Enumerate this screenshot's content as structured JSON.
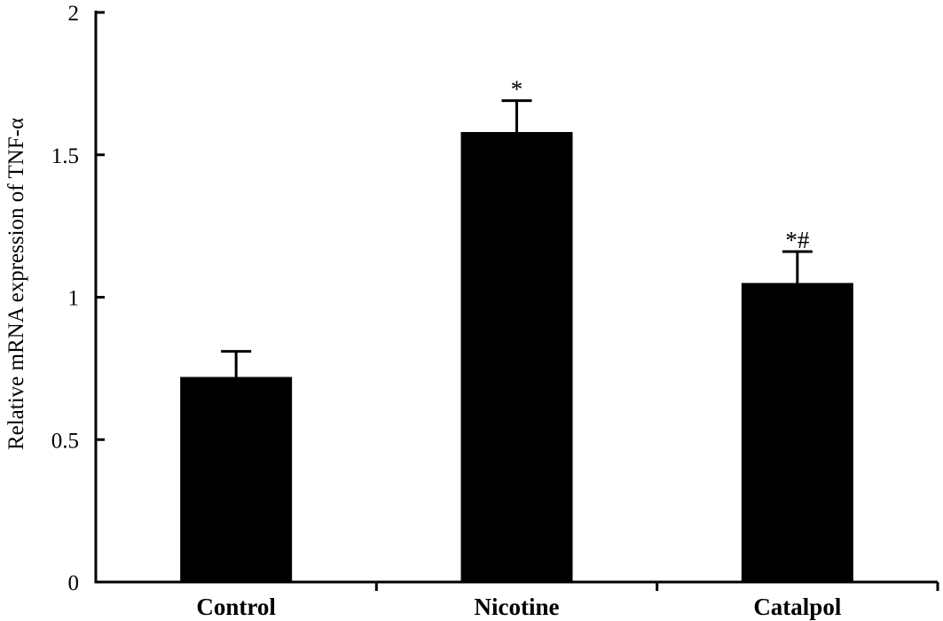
{
  "chart_data": {
    "type": "bar",
    "categories": [
      "Control",
      "Nicotine",
      "Catalpol"
    ],
    "values": [
      0.72,
      1.58,
      1.05
    ],
    "errors": [
      0.09,
      0.11,
      0.11
    ],
    "annotations": [
      "",
      "*",
      "*#"
    ],
    "ylabel": "Relative mRNA expression of TNF-α",
    "xlabel": "",
    "title": "",
    "ylim": [
      0,
      2
    ],
    "yticks": [
      0,
      0.5,
      1,
      1.5,
      2
    ],
    "ytick_labels": [
      "0",
      "0.5",
      "1",
      "1.5",
      "2"
    ],
    "grid": false,
    "bar_color": "#000000"
  }
}
